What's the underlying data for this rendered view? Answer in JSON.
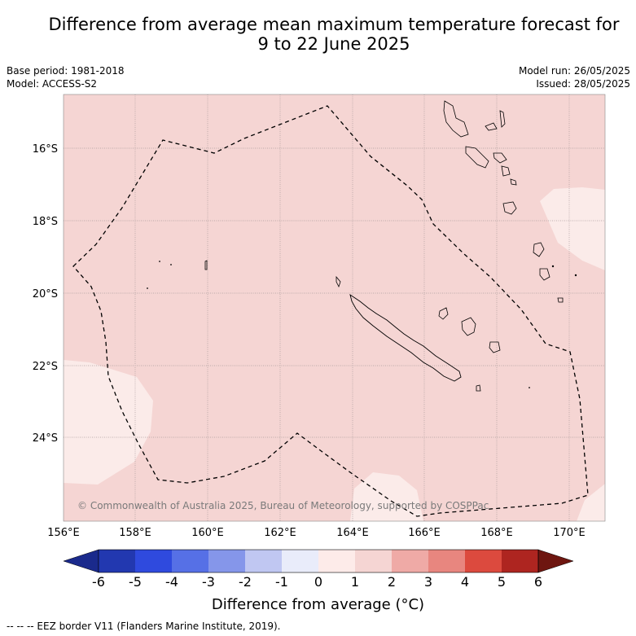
{
  "title": {
    "line1": "Difference from average mean maximum temperature forecast for",
    "line2": "9 to 22 June 2025"
  },
  "meta": {
    "base_period": "Base period: 1981-2018",
    "model": "Model: ACCESS-S2",
    "model_run": "Model run: 26/05/2025",
    "issued": "Issued: 28/05/2025"
  },
  "map": {
    "x_ticks": [
      "156°E",
      "158°E",
      "160°E",
      "162°E",
      "164°E",
      "166°E",
      "168°E",
      "170°E"
    ],
    "y_ticks": [
      "16°S",
      "18°S",
      "20°S",
      "22°S",
      "24°S"
    ],
    "background_color": "#f5d5d3",
    "light_color": "#fbebe9",
    "copyright": "© Commonwealth of Australia 2025, Bureau of Meteorology, supported by COSPPac"
  },
  "colorbar": {
    "labels": [
      "-6",
      "-5",
      "-4",
      "-3",
      "-2",
      "-1",
      "0",
      "1",
      "2",
      "3",
      "4",
      "5",
      "6"
    ],
    "colors": [
      "#1a2a8c",
      "#2238b0",
      "#2f4ade",
      "#5670e6",
      "#8596ea",
      "#c0c7f2",
      "#e9ecfa",
      "#fdebe9",
      "#f5d5d3",
      "#efaaa6",
      "#e8867f",
      "#dc4a3e",
      "#ae2520",
      "#6e1610"
    ],
    "title": "Difference from average (°C)"
  },
  "footnote": "--  --  -- EEZ border V11 (Flanders Marine Institute, 2019)."
}
